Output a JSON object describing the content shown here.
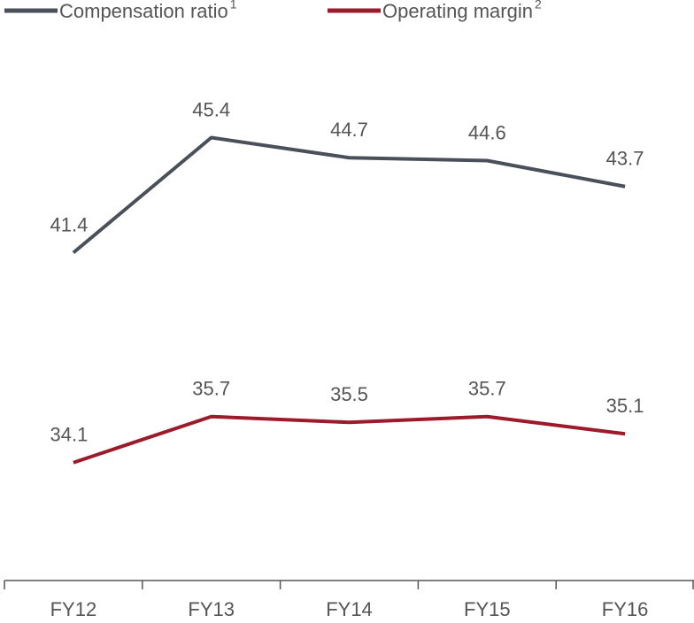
{
  "chart_data": {
    "type": "line",
    "categories": [
      "FY12",
      "FY13",
      "FY14",
      "FY15",
      "FY16"
    ],
    "series": [
      {
        "name": "Compensation ratio",
        "note": "1",
        "color": "#4a5059",
        "values": [
          41.4,
          45.4,
          44.7,
          44.6,
          43.7
        ]
      },
      {
        "name": "Operating margin",
        "note": "2",
        "color": "#9b1b2a",
        "values": [
          34.1,
          35.7,
          35.5,
          35.7,
          35.1
        ]
      }
    ],
    "ylim": [
      30,
      48
    ]
  }
}
